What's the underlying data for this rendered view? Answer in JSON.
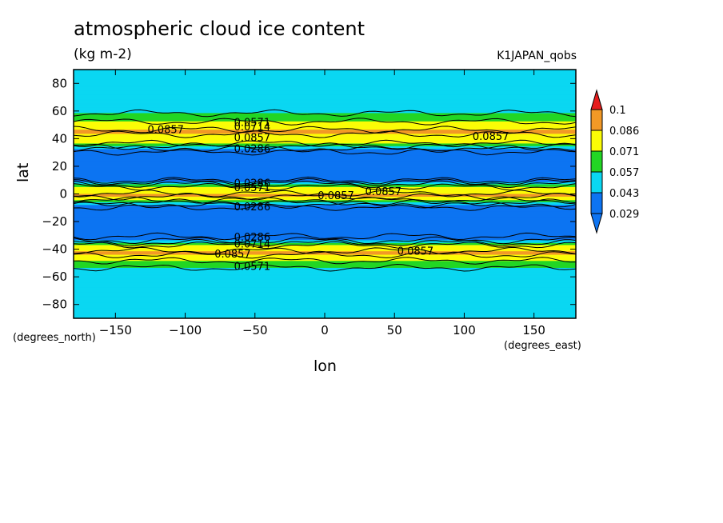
{
  "chart_data": {
    "type": "heatmap",
    "title": "atmospheric cloud ice content",
    "units": "(kg m-2)",
    "dataset": "K1JAPAN_qobs",
    "xlabel": "lon",
    "ylabel": "lat",
    "xunits": "(degrees_east)",
    "yunits": "(degrees_north)",
    "xlim": [
      -180,
      180
    ],
    "ylim": [
      -90,
      90
    ],
    "xticks": [
      -150,
      -100,
      -50,
      0,
      50,
      100,
      150
    ],
    "yticks": [
      -80,
      -60,
      -40,
      -20,
      0,
      20,
      40,
      60,
      80
    ],
    "colorbar": {
      "levels": [
        0.029,
        0.043,
        0.057,
        0.071,
        0.086,
        0.1
      ],
      "labels": [
        "0.029",
        "0.043",
        "0.057",
        "0.071",
        "0.086",
        "0.1"
      ],
      "colors": [
        "#0d74f2",
        "#0ad7f2",
        "#22d624",
        "#fbfc06",
        "#f29926",
        "#e61c1c"
      ],
      "below_color": "#0d74f2",
      "above_color": "#e61c1c"
    },
    "zonal_profile": [
      {
        "lat": 90,
        "value": 0.048
      },
      {
        "lat": 65,
        "value": 0.048
      },
      {
        "lat": 60,
        "value": 0.054
      },
      {
        "lat": 55,
        "value": 0.064
      },
      {
        "lat": 50,
        "value": 0.078
      },
      {
        "lat": 45,
        "value": 0.089
      },
      {
        "lat": 40,
        "value": 0.08
      },
      {
        "lat": 36,
        "value": 0.07
      },
      {
        "lat": 33,
        "value": 0.045
      },
      {
        "lat": 30,
        "value": 0.025
      },
      {
        "lat": 10,
        "value": 0.025
      },
      {
        "lat": 8,
        "value": 0.05
      },
      {
        "lat": 5,
        "value": 0.072
      },
      {
        "lat": 2,
        "value": 0.08
      },
      {
        "lat": -1,
        "value": 0.09
      },
      {
        "lat": -4,
        "value": 0.076
      },
      {
        "lat": -7,
        "value": 0.05
      },
      {
        "lat": -10,
        "value": 0.025
      },
      {
        "lat": -30,
        "value": 0.025
      },
      {
        "lat": -34,
        "value": 0.045
      },
      {
        "lat": -38,
        "value": 0.08
      },
      {
        "lat": -43,
        "value": 0.089
      },
      {
        "lat": -47,
        "value": 0.076
      },
      {
        "lat": -51,
        "value": 0.062
      },
      {
        "lat": -55,
        "value": 0.054
      },
      {
        "lat": -62,
        "value": 0.048
      },
      {
        "lat": -90,
        "value": 0.048
      }
    ],
    "contour_labels": [
      {
        "text": "0.0857",
        "lon": -127,
        "lat": 47
      },
      {
        "text": "0.0571",
        "lon": -65,
        "lat": 52
      },
      {
        "text": "0.0714",
        "lon": -65,
        "lat": 49
      },
      {
        "text": "0.0857",
        "lon": -65,
        "lat": 41
      },
      {
        "text": "0.0286",
        "lon": -65,
        "lat": 33
      },
      {
        "text": "0.0857",
        "lon": 106,
        "lat": 42
      },
      {
        "text": "0.0286",
        "lon": -65,
        "lat": 8
      },
      {
        "text": "0.0571",
        "lon": -65,
        "lat": 5
      },
      {
        "text": "0.0857",
        "lon": -5,
        "lat": -1
      },
      {
        "text": "0.0857",
        "lon": 29,
        "lat": 2
      },
      {
        "text": "0.0286",
        "lon": -65,
        "lat": -9
      },
      {
        "text": "0.0286",
        "lon": -65,
        "lat": -31
      },
      {
        "text": "0.0714",
        "lon": -65,
        "lat": -36
      },
      {
        "text": "0.0857",
        "lon": -79,
        "lat": -43
      },
      {
        "text": "0.0857",
        "lon": 52,
        "lat": -41
      },
      {
        "text": "0.0571",
        "lon": -65,
        "lat": -52
      }
    ]
  }
}
